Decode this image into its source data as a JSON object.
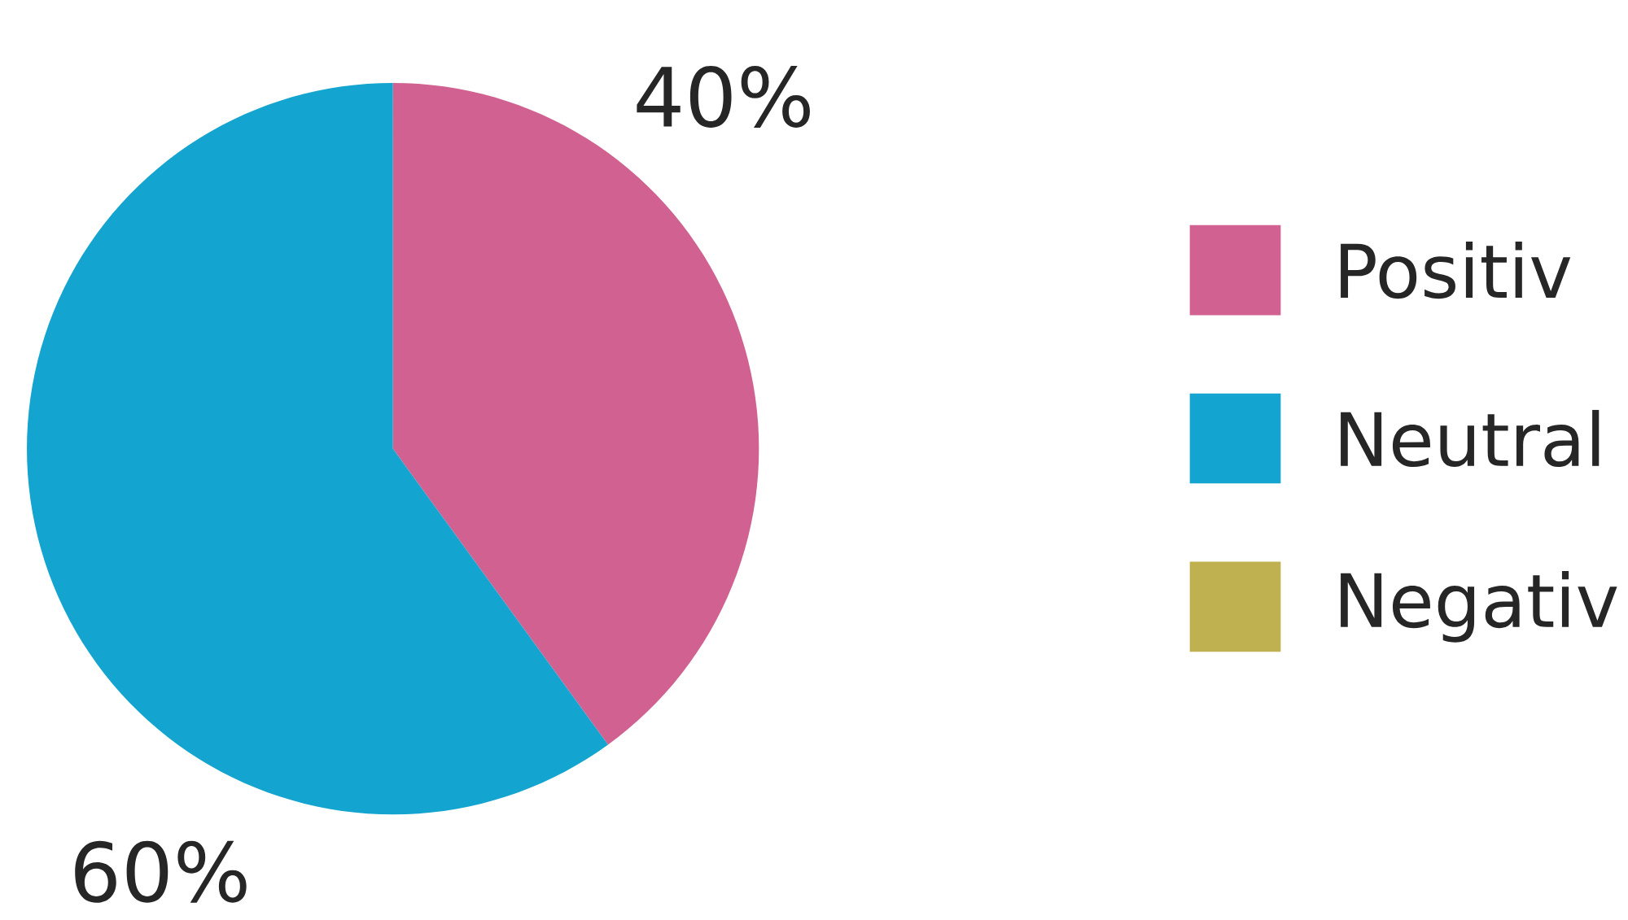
{
  "chart_data": {
    "type": "pie",
    "categories": [
      "Positiv",
      "Neutral",
      "Negativ"
    ],
    "values": [
      40,
      60,
      0
    ],
    "colors": [
      "#d06190",
      "#13a4d0",
      "#c0b150"
    ],
    "value_labels": [
      "40%",
      "60%",
      null
    ],
    "legend": "right"
  }
}
